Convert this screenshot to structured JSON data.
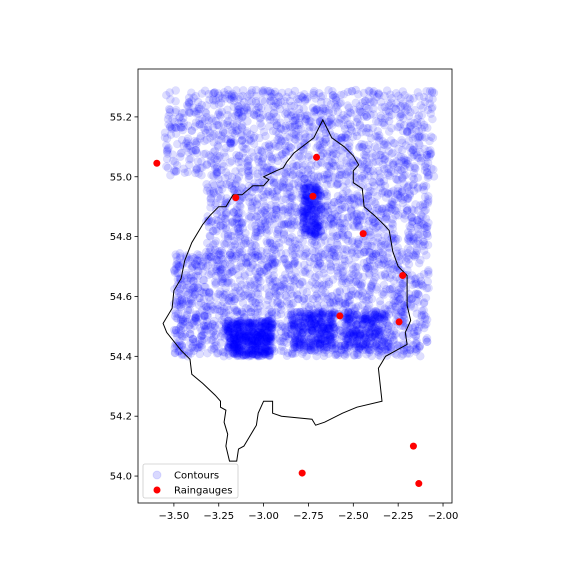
{
  "chart_data": {
    "type": "scatter",
    "title": "",
    "xlabel": "",
    "ylabel": "",
    "xlim": [
      -3.7,
      -1.95
    ],
    "ylim": [
      53.91,
      55.36
    ],
    "x_ticks": [
      -3.5,
      -3.25,
      -3.0,
      -2.75,
      -2.5,
      -2.25,
      -2.0
    ],
    "x_tick_labels": [
      "−3.50",
      "−3.25",
      "−3.00",
      "−2.75",
      "−2.50",
      "−2.25",
      "−2.00"
    ],
    "y_ticks": [
      54.0,
      54.2,
      54.4,
      54.6,
      54.8,
      55.0,
      55.2
    ],
    "y_tick_labels": [
      "54.0",
      "54.2",
      "54.4",
      "54.6",
      "54.8",
      "55.0",
      "55.2"
    ],
    "grid": false,
    "legend": {
      "placement": "lower-left"
    },
    "series": [
      {
        "name": "Contours",
        "color": "#0000ff",
        "alpha": 0.13,
        "marker": "circle",
        "regions": [
          {
            "x": [
              -3.55,
              -2.05
            ],
            "y": [
              55.0,
              55.29
            ],
            "count": 1100
          },
          {
            "x": [
              -3.32,
              -2.08
            ],
            "y": [
              54.4,
              55.0
            ],
            "count": 2100
          },
          {
            "x": [
              -3.5,
              -3.32
            ],
            "y": [
              54.4,
              54.75
            ],
            "count": 250
          },
          {
            "x": [
              -3.2,
              -2.95
            ],
            "y": [
              54.4,
              54.52
            ],
            "count": 500
          },
          {
            "x": [
              -2.85,
              -2.6
            ],
            "y": [
              54.42,
              54.55
            ],
            "count": 300
          },
          {
            "x": [
              -2.78,
              -2.68
            ],
            "y": [
              54.8,
              54.98
            ],
            "count": 200
          },
          {
            "x": [
              -2.55,
              -2.3
            ],
            "y": [
              54.42,
              54.55
            ],
            "count": 250
          }
        ]
      },
      {
        "name": "Raingauges",
        "color": "#ff0000",
        "marker": "circle",
        "points": [
          {
            "x": -3.595,
            "y": 55.045
          },
          {
            "x": -2.705,
            "y": 55.065
          },
          {
            "x": -3.155,
            "y": 54.93
          },
          {
            "x": -2.725,
            "y": 54.935
          },
          {
            "x": -2.445,
            "y": 54.81
          },
          {
            "x": -2.225,
            "y": 54.67
          },
          {
            "x": -2.575,
            "y": 54.535
          },
          {
            "x": -2.245,
            "y": 54.515
          },
          {
            "x": -2.165,
            "y": 54.1
          },
          {
            "x": -2.785,
            "y": 54.01
          },
          {
            "x": -2.135,
            "y": 53.975
          }
        ]
      }
    ],
    "boundary": [
      [
        -2.67,
        55.19
      ],
      [
        -2.62,
        55.13
      ],
      [
        -2.55,
        55.1
      ],
      [
        -2.5,
        55.07
      ],
      [
        -2.47,
        55.04
      ],
      [
        -2.5,
        55.02
      ],
      [
        -2.5,
        54.98
      ],
      [
        -2.45,
        54.96
      ],
      [
        -2.44,
        54.9
      ],
      [
        -2.38,
        54.87
      ],
      [
        -2.33,
        54.84
      ],
      [
        -2.3,
        54.82
      ],
      [
        -2.28,
        54.75
      ],
      [
        -2.25,
        54.7
      ],
      [
        -2.2,
        54.67
      ],
      [
        -2.2,
        54.57
      ],
      [
        -2.18,
        54.52
      ],
      [
        -2.21,
        54.48
      ],
      [
        -2.2,
        54.44
      ],
      [
        -2.32,
        54.4
      ],
      [
        -2.36,
        54.36
      ],
      [
        -2.34,
        54.25
      ],
      [
        -2.48,
        54.23
      ],
      [
        -2.56,
        54.21
      ],
      [
        -2.66,
        54.18
      ],
      [
        -2.71,
        54.17
      ],
      [
        -2.73,
        54.19
      ],
      [
        -2.9,
        54.2
      ],
      [
        -2.95,
        54.21
      ],
      [
        -2.95,
        54.25
      ],
      [
        -3.0,
        54.25
      ],
      [
        -3.03,
        54.21
      ],
      [
        -3.04,
        54.17
      ],
      [
        -3.08,
        54.13
      ],
      [
        -3.11,
        54.1
      ],
      [
        -3.14,
        54.09
      ],
      [
        -3.15,
        54.05
      ],
      [
        -3.19,
        54.05
      ],
      [
        -3.21,
        54.1
      ],
      [
        -3.2,
        54.14
      ],
      [
        -3.22,
        54.18
      ],
      [
        -3.21,
        54.22
      ],
      [
        -3.24,
        54.23
      ],
      [
        -3.24,
        54.25
      ],
      [
        -3.27,
        54.27
      ],
      [
        -3.34,
        54.31
      ],
      [
        -3.4,
        54.34
      ],
      [
        -3.41,
        54.39
      ],
      [
        -3.46,
        54.42
      ],
      [
        -3.54,
        54.48
      ],
      [
        -3.56,
        54.51
      ],
      [
        -3.51,
        54.56
      ],
      [
        -3.5,
        54.62
      ],
      [
        -3.46,
        54.66
      ],
      [
        -3.44,
        54.72
      ],
      [
        -3.4,
        54.78
      ],
      [
        -3.34,
        54.84
      ],
      [
        -3.3,
        54.87
      ],
      [
        -3.25,
        54.9
      ],
      [
        -3.21,
        54.9
      ],
      [
        -3.17,
        54.94
      ],
      [
        -3.12,
        54.94
      ],
      [
        -3.06,
        54.97
      ],
      [
        -3.0,
        54.97
      ],
      [
        -2.97,
        54.99
      ],
      [
        -3.0,
        55.0
      ],
      [
        -2.93,
        55.02
      ],
      [
        -2.89,
        55.03
      ],
      [
        -2.87,
        55.05
      ],
      [
        -2.83,
        55.08
      ],
      [
        -2.72,
        55.13
      ],
      [
        -2.67,
        55.19
      ]
    ]
  }
}
